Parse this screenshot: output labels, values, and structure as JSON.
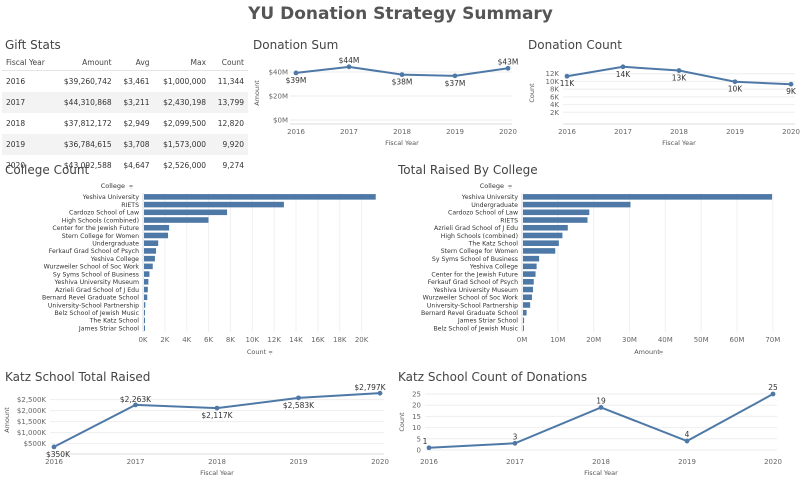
{
  "title": "YU Donation Strategy Summary",
  "gift_stats": {
    "title": "Gift Stats",
    "headers": [
      "Fiscal Year",
      "Amount",
      "Avg",
      "Max",
      "Count"
    ],
    "rows": [
      [
        "2016",
        "$39,260,742",
        "$3,461",
        "$1,000,000",
        "11,344"
      ],
      [
        "2017",
        "$44,310,868",
        "$3,211",
        "$2,430,198",
        "13,799"
      ],
      [
        "2018",
        "$37,812,172",
        "$2,949",
        "$2,099,500",
        "12,820"
      ],
      [
        "2019",
        "$36,784,615",
        "$3,708",
        "$1,573,000",
        "9,920"
      ],
      [
        "2020",
        "$43,092,588",
        "$4,647",
        "$2,526,000",
        "9,274"
      ]
    ]
  },
  "chart_data": [
    {
      "id": "donation_sum",
      "type": "line",
      "title": "Donation Sum",
      "xlabel": "Fiscal Year",
      "ylabel": "Amount",
      "x": [
        "2016",
        "2017",
        "2018",
        "2019",
        "2020"
      ],
      "values": [
        39.26,
        44.31,
        37.81,
        36.78,
        43.09
      ],
      "labels": [
        "$39M",
        "$44M",
        "$38M",
        "$37M",
        "$43M"
      ],
      "yticks": [
        "$0M",
        "$20M",
        "$40M"
      ],
      "ylim": [
        0,
        45
      ],
      "color": "#4e79a7"
    },
    {
      "id": "donation_count",
      "type": "line",
      "title": "Donation Count",
      "xlabel": "Fiscal Year",
      "ylabel": "Count",
      "x": [
        "2016",
        "2017",
        "2018",
        "2019",
        "2020"
      ],
      "values": [
        11344,
        13799,
        12820,
        9920,
        9274
      ],
      "labels": [
        "11K",
        "14K",
        "13K",
        "10K",
        "9K"
      ],
      "yticks": [
        "2K",
        "4K",
        "6K",
        "8K",
        "10K",
        "12K"
      ],
      "ylim": [
        0,
        14000
      ],
      "color": "#4e79a7"
    },
    {
      "id": "college_count",
      "type": "bar",
      "orientation": "horizontal",
      "title": "College Count",
      "category_header": "College",
      "xlabel": "Count",
      "categories": [
        "Yeshiva University",
        "RIETS",
        "Cardozo School of Law",
        "High Schools (combined)",
        "Center for the Jewish Future",
        "Stern College for Women",
        "Undergraduate",
        "Ferkauf Grad School of Psych",
        "Yeshiva College",
        "Wurzweiler School of Soc Work",
        "Sy Syms School of Business",
        "Yeshiva University Museum",
        "Azrieli Grad School of J Edu",
        "Bernard Revel Graduate School",
        "University-School Partnership",
        "Belz School of Jewish Music",
        "The Katz School",
        "James Striar School"
      ],
      "values": [
        21200,
        12800,
        7600,
        5900,
        2300,
        2200,
        1300,
        1100,
        1000,
        800,
        500,
        400,
        350,
        300,
        120,
        80,
        40,
        20
      ],
      "xticks": [
        "0K",
        "2K",
        "4K",
        "6K",
        "8K",
        "10K",
        "12K",
        "14K",
        "16K",
        "18K",
        "20K"
      ],
      "xlim": [
        0,
        21500
      ],
      "color": "#4e79a7"
    },
    {
      "id": "total_raised_by_college",
      "type": "bar",
      "orientation": "horizontal",
      "title": "Total Raised By College",
      "category_header": "College",
      "xlabel": "Amount",
      "categories": [
        "Yeshiva University",
        "Undergraduate",
        "Cardozo School of Law",
        "RIETS",
        "Azrieli Grad School of J Edu",
        "High Schools (combined)",
        "The Katz School",
        "Stern College for Women",
        "Sy Syms School of Business",
        "Yeshiva College",
        "Center for the Jewish Future",
        "Ferkauf Grad School of Psych",
        "Yeshiva University Museum",
        "Wurzweiler School of Soc Work",
        "University-School Partnership",
        "Bernard Revel Graduate School",
        "James Striar School",
        "Belz School of Jewish Music"
      ],
      "values": [
        69.5,
        30,
        18.5,
        18,
        12.5,
        11,
        10,
        9,
        4.5,
        3.8,
        3.5,
        3,
        2.8,
        2.5,
        2,
        1,
        0.3,
        0.2
      ],
      "xticks": [
        "0M",
        "10M",
        "20M",
        "30M",
        "40M",
        "50M",
        "60M",
        "70M"
      ],
      "xlim": [
        0,
        72
      ],
      "color": "#4e79a7"
    },
    {
      "id": "katz_total_raised",
      "type": "line",
      "title": "Katz School Total Raised",
      "xlabel": "Fiscal Year",
      "ylabel": "Amount",
      "x": [
        "2016",
        "2017",
        "2018",
        "2019",
        "2020"
      ],
      "values": [
        350,
        2263,
        2117,
        2583,
        2797
      ],
      "labels": [
        "$350K",
        "$2,263K",
        "$2,117K",
        "$2,583K",
        "$2,797K"
      ],
      "yticks": [
        "$500K",
        "$1,000K",
        "$1,500K",
        "$2,000K",
        "$2,500K"
      ],
      "ylim": [
        300,
        2850
      ],
      "color": "#4e79a7"
    },
    {
      "id": "katz_count",
      "type": "line",
      "title": "Katz School Count of Donations",
      "xlabel": "Fiscal Year",
      "ylabel": "Count",
      "x": [
        "2016",
        "2017",
        "2018",
        "2019",
        "2020"
      ],
      "values": [
        1,
        3,
        19,
        4,
        25
      ],
      "labels": [
        "1",
        "3",
        "19",
        "4",
        "25"
      ],
      "yticks": [
        "0",
        "5",
        "10",
        "15",
        "20",
        "25"
      ],
      "ylim": [
        0,
        25
      ],
      "color": "#4e79a7"
    }
  ]
}
